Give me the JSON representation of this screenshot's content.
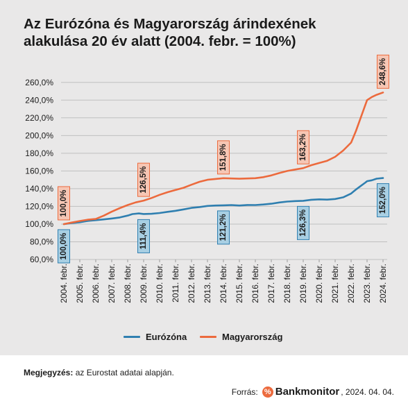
{
  "title_lines": [
    "Az Eurózóna és Magyarország árindexének",
    "alakulása 20 év alatt (2004. febr. = 100%)"
  ],
  "colors": {
    "eurozone": "#2f7fb0",
    "hungary": "#ec6a3d",
    "grid": "#bfbfbf",
    "background": "#e9e8e8",
    "hungary_label_bg": "#f6c6b4",
    "eurozone_label_bg": "#a8cfe3"
  },
  "chart_data": {
    "type": "line",
    "ylim": [
      60,
      270
    ],
    "yticks": [
      {
        "v": 60,
        "label": "60,0%"
      },
      {
        "v": 80,
        "label": "80,0%"
      },
      {
        "v": 100,
        "label": "100,0%"
      },
      {
        "v": 120,
        "label": "120,0%"
      },
      {
        "v": 140,
        "label": "140,0%"
      },
      {
        "v": 160,
        "label": "160,0%"
      },
      {
        "v": 180,
        "label": "180,0%"
      },
      {
        "v": 200,
        "label": "200,0%"
      },
      {
        "v": 220,
        "label": "220,0%"
      },
      {
        "v": 240,
        "label": "240,0%"
      },
      {
        "v": 260,
        "label": "260,0%"
      }
    ],
    "categories": [
      "2004. febr.",
      "2005. febr.",
      "2006. febr.",
      "2007. febr.",
      "2008. febr.",
      "2009. febr.",
      "2010. febr.",
      "2011. febr.",
      "2012. febr.",
      "2013. febr.",
      "2014. febr.",
      "2015. febr.",
      "2016. febr.",
      "2017. febr.",
      "2018. febr.",
      "2019. febr.",
      "2020. febr.",
      "2021. febr.",
      "2022. febr.",
      "2023. febr.",
      "2024. febr."
    ],
    "series": [
      {
        "name": "Eurózóna",
        "key": "eurozone",
        "points": [
          [
            0,
            100.0
          ],
          [
            0.5,
            101.2
          ],
          [
            1,
            102.1
          ],
          [
            1.5,
            103.6
          ],
          [
            2,
            104.4
          ],
          [
            2.5,
            105.3
          ],
          [
            3,
            106.3
          ],
          [
            3.5,
            107.5
          ],
          [
            4,
            109.6
          ],
          [
            4.3,
            111.3
          ],
          [
            4.7,
            112.0
          ],
          [
            5,
            111.4
          ],
          [
            5.5,
            111.6
          ],
          [
            6,
            112.5
          ],
          [
            6.5,
            113.8
          ],
          [
            7,
            115.0
          ],
          [
            7.5,
            116.6
          ],
          [
            8,
            118.3
          ],
          [
            8.5,
            119.2
          ],
          [
            9,
            120.5
          ],
          [
            9.5,
            121.0
          ],
          [
            10,
            121.2
          ],
          [
            10.5,
            121.5
          ],
          [
            11,
            121.0
          ],
          [
            11.5,
            121.6
          ],
          [
            12,
            121.5
          ],
          [
            12.5,
            122.1
          ],
          [
            13,
            123.0
          ],
          [
            13.5,
            124.4
          ],
          [
            14,
            125.4
          ],
          [
            14.5,
            126.0
          ],
          [
            15,
            126.3
          ],
          [
            15.5,
            127.5
          ],
          [
            16,
            127.9
          ],
          [
            16.5,
            127.6
          ],
          [
            17,
            128.3
          ],
          [
            17.5,
            130.2
          ],
          [
            18,
            134.5
          ],
          [
            18.3,
            139.0
          ],
          [
            18.6,
            143.0
          ],
          [
            18.9,
            147.0
          ],
          [
            19,
            148.5
          ],
          [
            19.3,
            149.5
          ],
          [
            19.6,
            151.3
          ],
          [
            20,
            152.0
          ]
        ],
        "label_values": [
          {
            "x": 0,
            "v": 100.0,
            "text": "100,0%"
          },
          {
            "x": 5,
            "v": 111.4,
            "text": "111,4%"
          },
          {
            "x": 10,
            "v": 121.2,
            "text": "121,2%"
          },
          {
            "x": 15,
            "v": 126.3,
            "text": "126,3%"
          },
          {
            "x": 20,
            "v": 152.0,
            "text": "152,0%"
          }
        ]
      },
      {
        "name": "Magyarország",
        "key": "hungary",
        "points": [
          [
            0,
            100.0
          ],
          [
            0.5,
            101.8
          ],
          [
            1,
            103.5
          ],
          [
            1.5,
            105.0
          ],
          [
            2,
            105.8
          ],
          [
            2.5,
            109.5
          ],
          [
            3,
            114.0
          ],
          [
            3.5,
            118.0
          ],
          [
            4,
            121.5
          ],
          [
            4.5,
            124.5
          ],
          [
            5,
            126.5
          ],
          [
            5.5,
            129.5
          ],
          [
            6,
            133.0
          ],
          [
            6.5,
            136.0
          ],
          [
            7,
            138.5
          ],
          [
            7.5,
            141.0
          ],
          [
            8,
            144.5
          ],
          [
            8.5,
            147.8
          ],
          [
            9,
            150.0
          ],
          [
            9.5,
            151.0
          ],
          [
            10,
            151.8
          ],
          [
            10.5,
            151.5
          ],
          [
            11,
            151.2
          ],
          [
            11.5,
            151.5
          ],
          [
            12,
            151.8
          ],
          [
            12.5,
            153.0
          ],
          [
            13,
            155.0
          ],
          [
            13.5,
            157.6
          ],
          [
            14,
            160.0
          ],
          [
            14.5,
            161.6
          ],
          [
            15,
            163.2
          ],
          [
            15.5,
            166.5
          ],
          [
            16,
            169.0
          ],
          [
            16.5,
            171.5
          ],
          [
            17,
            176.0
          ],
          [
            17.5,
            183.0
          ],
          [
            18,
            192.0
          ],
          [
            18.3,
            205.0
          ],
          [
            18.6,
            220.0
          ],
          [
            18.9,
            235.0
          ],
          [
            19,
            240.0
          ],
          [
            19.3,
            243.5
          ],
          [
            19.6,
            246.0
          ],
          [
            20,
            248.6
          ]
        ],
        "label_values": [
          {
            "x": 0,
            "v": 100.0,
            "text": "100,0%"
          },
          {
            "x": 5,
            "v": 126.5,
            "text": "126,5%"
          },
          {
            "x": 10,
            "v": 151.8,
            "text": "151,8%"
          },
          {
            "x": 15,
            "v": 163.2,
            "text": "163,2%"
          },
          {
            "x": 20,
            "v": 248.6,
            "text": "248,6%"
          }
        ]
      }
    ],
    "legend_position": "bottom",
    "grid": true
  },
  "legend": [
    {
      "label": "Eurózóna",
      "key": "eurozone"
    },
    {
      "label": "Magyarország",
      "key": "hungary"
    }
  ],
  "footer": {
    "note_label": "Megjegyzés:",
    "note_text": " az Eurostat adatai alapján.",
    "source_label": "Forrás:",
    "brand_icon": "%",
    "brand": "Bankmonitor",
    "date": ", 2024. 04. 04."
  }
}
